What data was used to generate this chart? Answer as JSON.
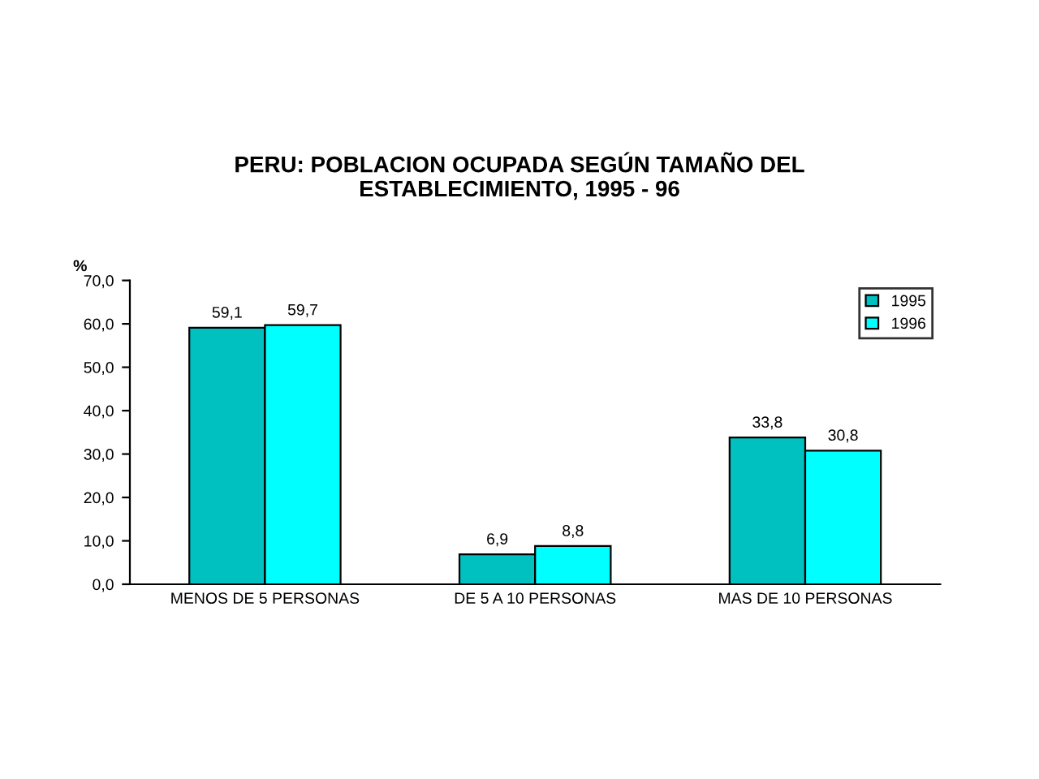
{
  "chart_data": {
    "type": "bar",
    "title": "PERU: POBLACION OCUPADA SEGÚN TAMAÑO DEL\nESTABLECIMIENTO, 1995 - 96",
    "ylabel": "%",
    "categories": [
      "MENOS DE 5 PERSONAS",
      "DE 5 A 10 PERSONAS",
      "MAS DE 10 PERSONAS"
    ],
    "series": [
      {
        "name": "1995",
        "color": "#00c0c0",
        "values": [
          59.1,
          6.9,
          33.8
        ],
        "value_labels": [
          "59,1",
          "6,9",
          "33,8"
        ]
      },
      {
        "name": "1996",
        "color": "#00ffff",
        "values": [
          59.7,
          8.8,
          30.8
        ],
        "value_labels": [
          "59,7",
          "8,8",
          "30,8"
        ]
      }
    ],
    "ylim": [
      0,
      70
    ],
    "yticks": [
      {
        "value": 0,
        "label": "0,0"
      },
      {
        "value": 10,
        "label": "10,0"
      },
      {
        "value": 20,
        "label": "20,0"
      },
      {
        "value": 30,
        "label": "30,0"
      },
      {
        "value": 40,
        "label": "40,0"
      },
      {
        "value": 50,
        "label": "50,0"
      },
      {
        "value": 60,
        "label": "60,0"
      },
      {
        "value": 70,
        "label": "70,0"
      }
    ],
    "grid": false,
    "legend": "top right"
  }
}
